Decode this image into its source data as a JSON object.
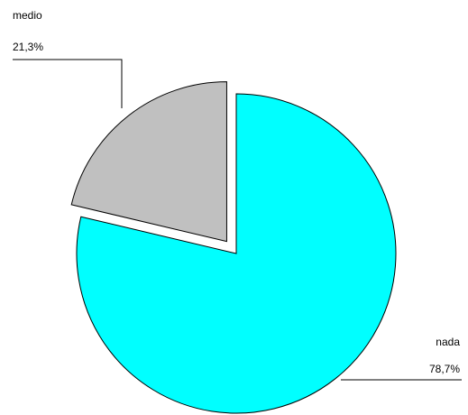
{
  "chart_data": {
    "type": "pie",
    "title": "",
    "slices": [
      {
        "label": "nada",
        "value": 78.7,
        "value_label": "78,7%",
        "color": "#00ffff",
        "exploded": false
      },
      {
        "label": "medio",
        "value": 21.3,
        "value_label": "21,3%",
        "color": "#c0c0c0",
        "exploded": true
      }
    ],
    "legend": "none",
    "start": "12 o'clock",
    "direction": "clockwise"
  }
}
